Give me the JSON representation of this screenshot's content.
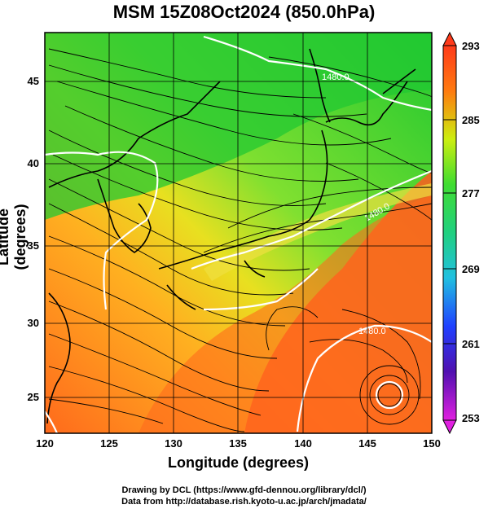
{
  "title": "MSM 15Z08Oct2024 (850.0hPa)",
  "axes": {
    "xlabel": "Longitude (degrees)",
    "ylabel": "Latitude  (degrees)",
    "xticks": [
      "120",
      "125",
      "130",
      "135",
      "140",
      "145",
      "150"
    ],
    "yticks": [
      "25",
      "30",
      "35",
      "40",
      "45"
    ],
    "x_range": [
      120,
      150
    ],
    "y_range": [
      22.4,
      47.6
    ]
  },
  "colorbar": {
    "labels": [
      "293",
      "285",
      "277",
      "269",
      "261",
      "253"
    ],
    "min": 253,
    "max": 293,
    "colors": [
      "#ff00ff",
      "#6600cc",
      "#0000ff",
      "#00ccff",
      "#00ff66",
      "#66ff00",
      "#ccff00",
      "#ffcc00",
      "#ff6600",
      "#ff3300"
    ]
  },
  "contour_labels": [
    "1480.0",
    "1480.0",
    "1480.0"
  ],
  "map_colors": {
    "warm": "#ff5a1e",
    "mid": "#f0d020",
    "cool": "#2bd24a",
    "coast": "#000000",
    "contour": "#ffffff"
  },
  "credits": {
    "line1": "Drawing by DCL (https://www.gfd-dennou.org/library/dcl/)",
    "line2": "Data from http://database.rish.kyoto-u.ac.jp/arch/jmadata/"
  }
}
